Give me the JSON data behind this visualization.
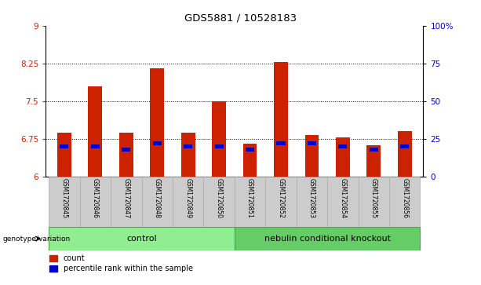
{
  "title": "GDS5881 / 10528183",
  "samples": [
    "GSM1720845",
    "GSM1720846",
    "GSM1720847",
    "GSM1720848",
    "GSM1720849",
    "GSM1720850",
    "GSM1720851",
    "GSM1720852",
    "GSM1720853",
    "GSM1720854",
    "GSM1720855",
    "GSM1720856"
  ],
  "count_values": [
    6.88,
    7.8,
    6.88,
    8.15,
    6.88,
    7.5,
    6.65,
    8.28,
    6.83,
    6.78,
    6.62,
    6.9
  ],
  "percentile_values": [
    20,
    20,
    18,
    22,
    20,
    20,
    18,
    22,
    22,
    20,
    18,
    20
  ],
  "bar_bottom": 6.0,
  "ymin": 6.0,
  "ymax": 9.0,
  "yticks": [
    6.0,
    6.75,
    7.5,
    8.25,
    9.0
  ],
  "ytick_labels": [
    "6",
    "6.75",
    "7.5",
    "8.25",
    "9"
  ],
  "right_yticks": [
    0,
    25,
    50,
    75,
    100
  ],
  "right_ytick_labels": [
    "0",
    "25",
    "50",
    "75",
    "100%"
  ],
  "control_label": "control",
  "knockout_label": "nebulin conditional knockout",
  "genotype_label": "genotype/variation",
  "bar_color": "#cc2200",
  "percentile_color": "#0000cc",
  "control_bg": "#90ee90",
  "knockout_bg": "#66cc66",
  "sample_bg": "#cccccc",
  "sample_edge": "#aaaaaa",
  "legend_count": "count",
  "legend_percentile": "percentile rank within the sample",
  "bar_width": 0.45,
  "pct_bar_width": 0.28,
  "pct_bar_height": 0.07,
  "grid_lines": [
    6.75,
    7.5,
    8.25
  ]
}
